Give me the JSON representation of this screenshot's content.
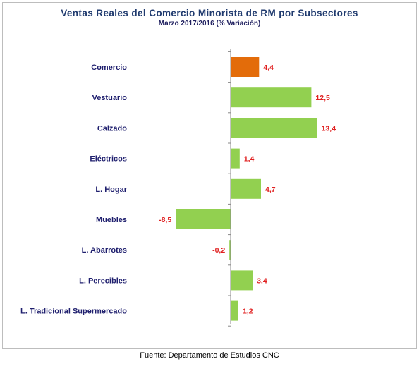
{
  "chart_data": {
    "type": "bar",
    "orientation": "horizontal",
    "title": "Ventas Reales del Comercio Minorista de RM por Subsectores",
    "subtitle": "Marzo 2017/2016 (% Variación)",
    "categories": [
      "Comercio",
      "Vestuario",
      "Calzado",
      "Eléctricos",
      "L. Hogar",
      "Muebles",
      "L. Abarrotes",
      "L. Perecibles",
      "L. Tradicional Supermercado"
    ],
    "values": [
      4.4,
      12.5,
      13.4,
      1.4,
      4.7,
      -8.5,
      -0.2,
      3.4,
      1.2
    ],
    "value_labels": [
      "4,4",
      "12,5",
      "13,4",
      "1,4",
      "4,7",
      "-8,5",
      "-0,2",
      "3,4",
      "1,2"
    ],
    "xlim": [
      -15,
      15
    ],
    "grid": false,
    "legend": "none",
    "colors": {
      "highlight": "#e36c0a",
      "default": "#92d050",
      "label_text": "#1f1f6e",
      "value_text": "#e02020",
      "axis": "#888888"
    },
    "highlight_index": 0
  },
  "footer": {
    "source": "Fuente: Departamento de Estudios CNC"
  }
}
